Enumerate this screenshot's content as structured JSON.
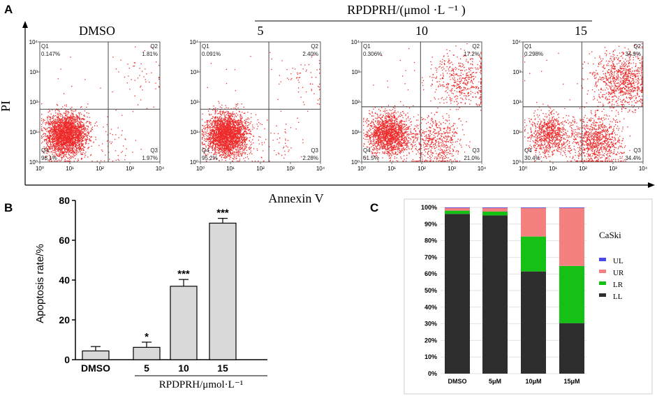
{
  "panel_labels": {
    "a": "A",
    "b": "B",
    "c": "C"
  },
  "panel_a": {
    "treatment_label": "RPDPRH/(μmol ·L ⁻¹ )",
    "xlabel": "Annexin V",
    "ylabel": "PI",
    "tick_labels": [
      "10⁰",
      "10¹",
      "10²",
      "10³",
      "10⁴"
    ],
    "plots": [
      {
        "title": "DMSO",
        "Q1": {
          "name": "Q1",
          "value": "0.147%"
        },
        "Q2": {
          "name": "Q2",
          "value": "1.81%"
        },
        "Q3": {
          "name": "Q3",
          "value": "1.97%"
        },
        "Q4": {
          "name": "Q4",
          "value": "96.1%"
        }
      },
      {
        "title": "5",
        "Q1": {
          "name": "Q1",
          "value": "0.091%"
        },
        "Q2": {
          "name": "Q2",
          "value": "2.40%"
        },
        "Q3": {
          "name": "Q3",
          "value": "2.28%"
        },
        "Q4": {
          "name": "Q4",
          "value": "95.2%"
        }
      },
      {
        "title": "10",
        "Q1": {
          "name": "Q1",
          "value": "0.306%"
        },
        "Q2": {
          "name": "Q2",
          "value": "17.2%"
        },
        "Q3": {
          "name": "Q3",
          "value": "21.0%"
        },
        "Q4": {
          "name": "Q4",
          "value": "61.5%"
        }
      },
      {
        "title": "15",
        "Q1": {
          "name": "Q1",
          "value": "0.298%"
        },
        "Q2": {
          "name": "Q2",
          "value": "34.9%"
        },
        "Q3": {
          "name": "Q3",
          "value": "34.4%"
        },
        "Q4": {
          "name": "Q4",
          "value": "30.4%"
        }
      }
    ]
  },
  "chart_data": [
    {
      "type": "bar",
      "panel": "B",
      "categories": [
        "DMSO",
        "5",
        "10",
        "15"
      ],
      "values": [
        4.4,
        6.2,
        36.9,
        68.6
      ],
      "errors": [
        2.2,
        2.6,
        3.4,
        2.4
      ],
      "significance": [
        "",
        "*",
        "***",
        "***"
      ],
      "ylabel": "Apoptosis rate/%",
      "xlabel": "RPDPRH/μmol·L⁻¹",
      "ylim": [
        0,
        80
      ],
      "yticks": [
        0,
        20,
        40,
        60,
        80
      ],
      "bar_color": "#d9d9d9"
    },
    {
      "type": "bar",
      "panel": "C",
      "stacked": true,
      "categories": [
        "DMSO",
        "5μM",
        "10μM",
        "15μM"
      ],
      "series": [
        {
          "name": "LL",
          "color": "#2e2e2e",
          "values": [
            96.1,
            95.2,
            61.5,
            30.4
          ]
        },
        {
          "name": "LR",
          "color": "#14c114",
          "values": [
            1.97,
            2.28,
            21.0,
            34.4
          ]
        },
        {
          "name": "UR",
          "color": "#f58080",
          "values": [
            1.81,
            2.4,
            17.2,
            34.9
          ]
        },
        {
          "name": "UL",
          "color": "#4a4ae8",
          "values": [
            0.147,
            0.091,
            0.306,
            0.298
          ]
        }
      ],
      "legend_title": "CaSki",
      "ylim": [
        0,
        100
      ],
      "ytick_labels": [
        "0%",
        "10%",
        "20%",
        "30%",
        "40%",
        "50%",
        "60%",
        "70%",
        "80%",
        "90%",
        "100%"
      ]
    }
  ]
}
